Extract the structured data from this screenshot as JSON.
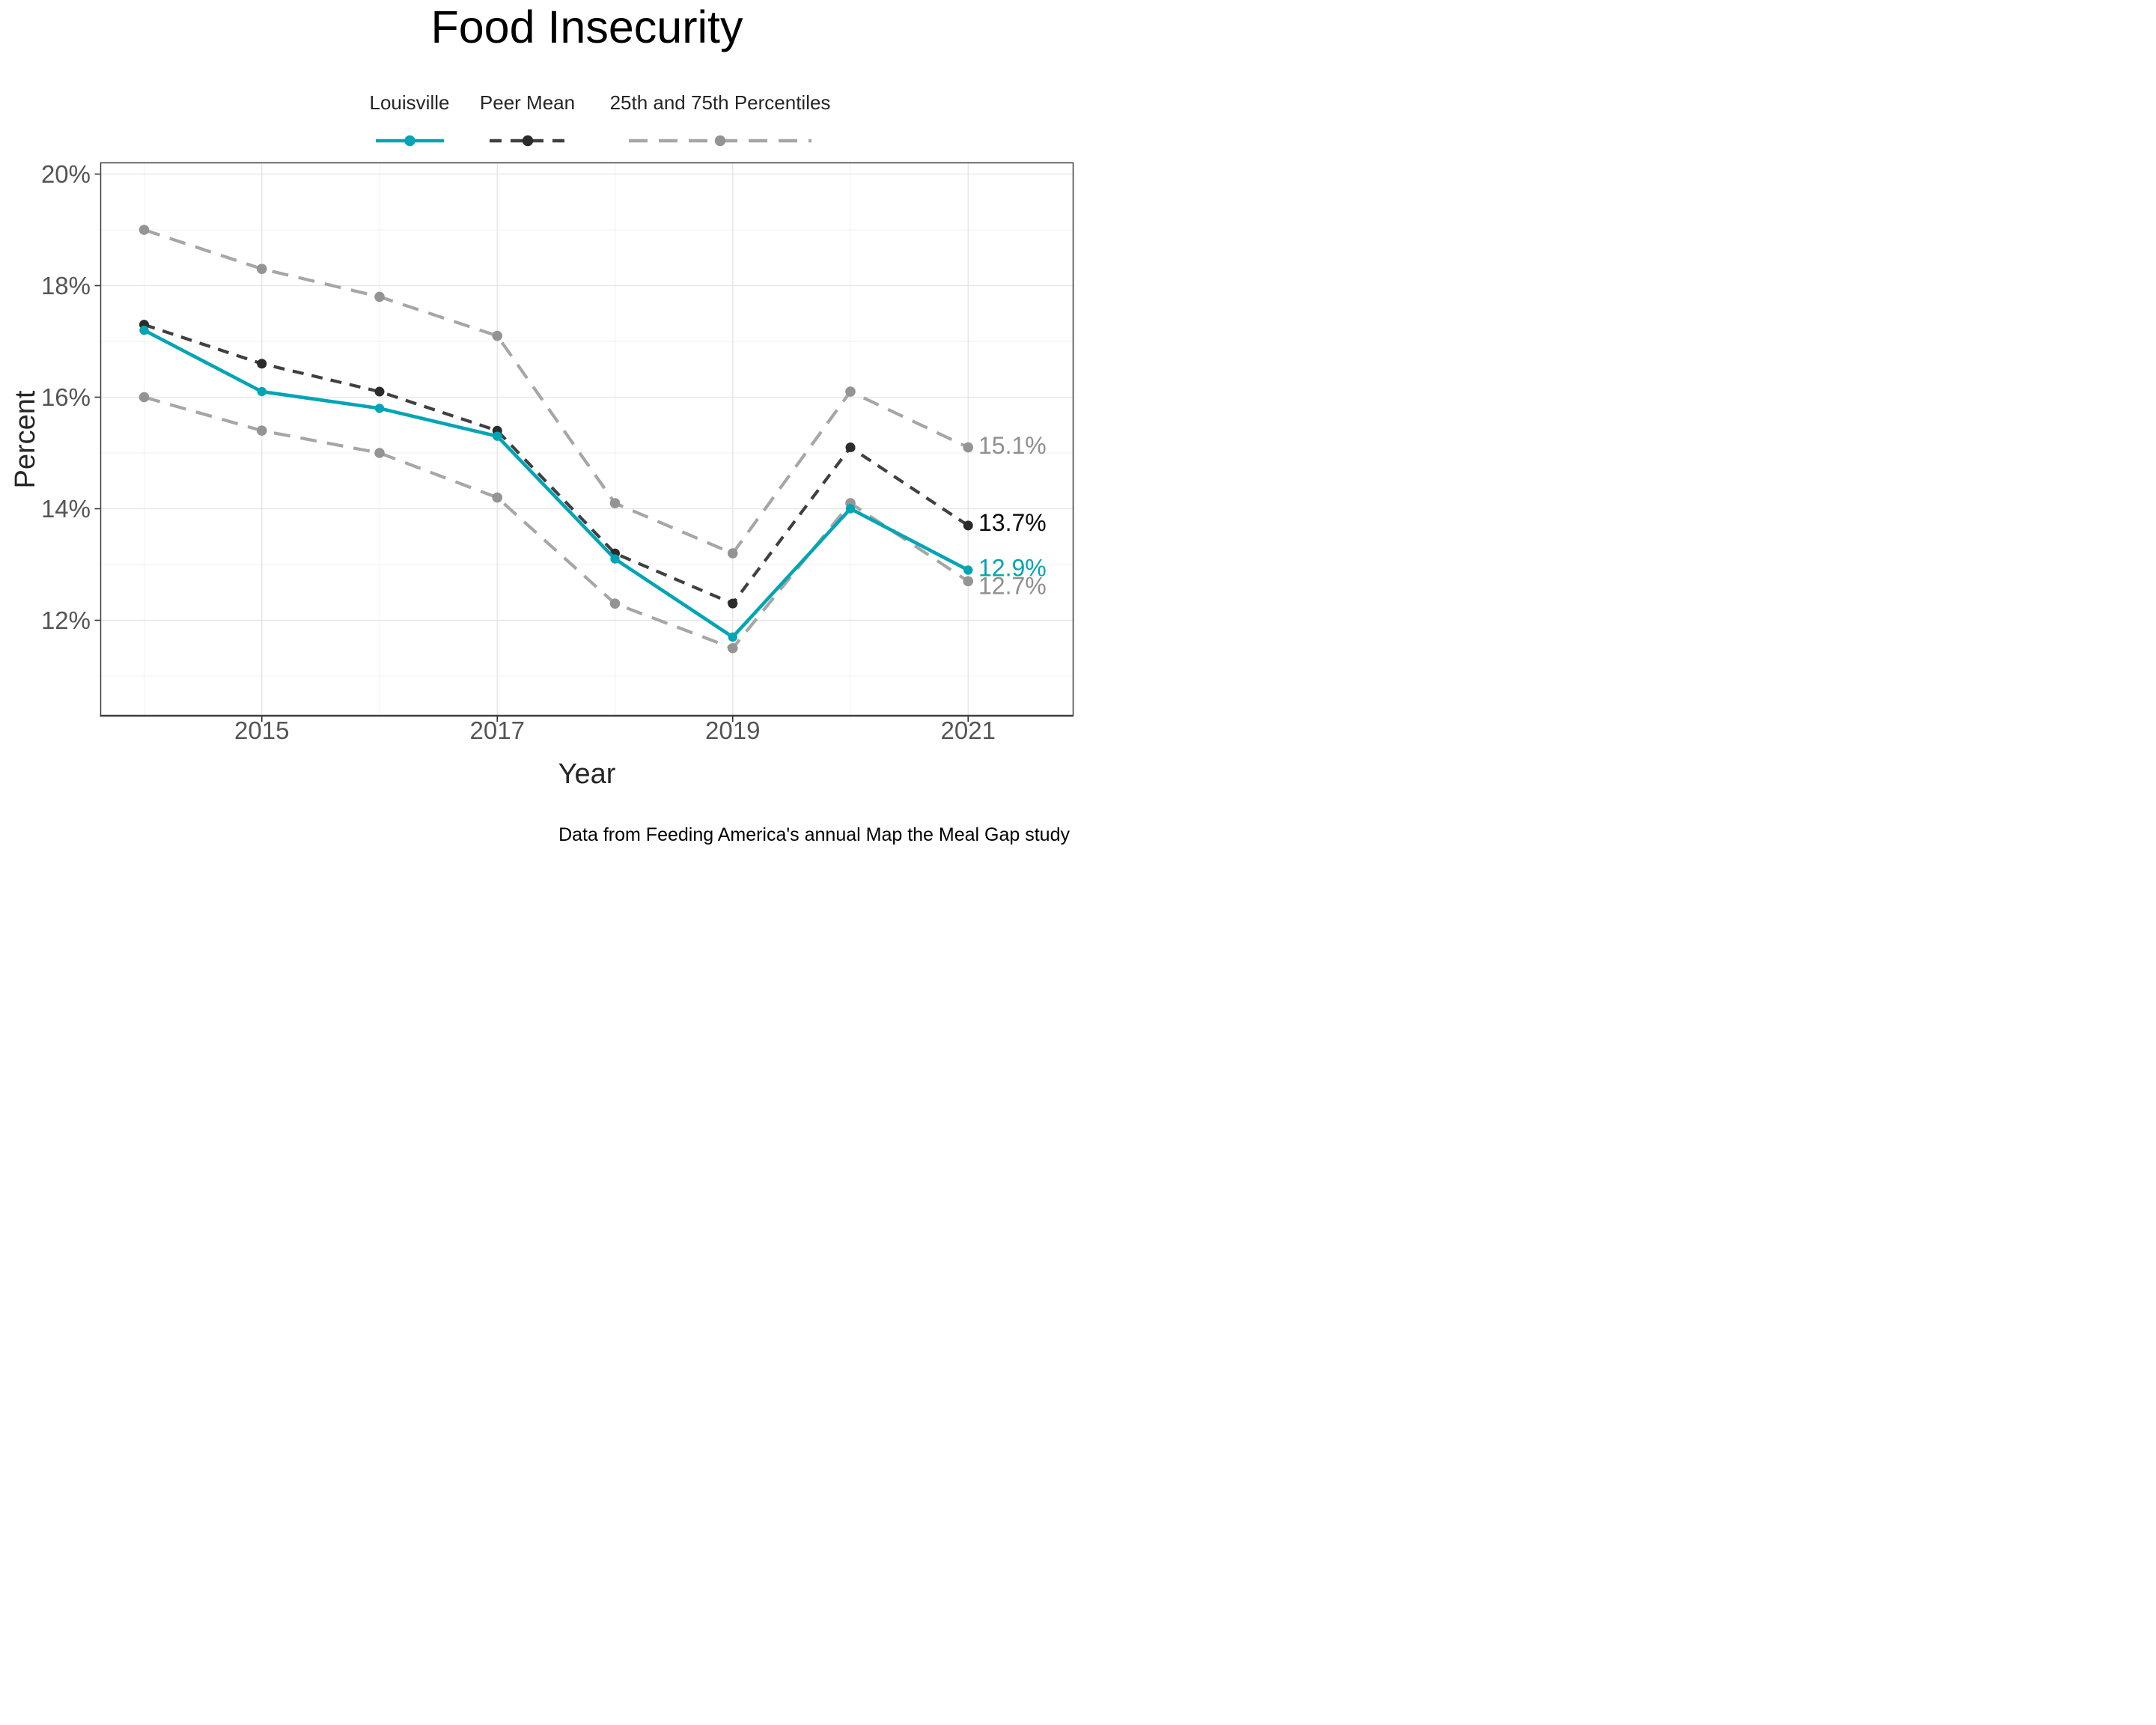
{
  "title": "Food Insecurity",
  "legend": {
    "items": [
      {
        "label": "Louisville"
      },
      {
        "label": "Peer Mean"
      },
      {
        "label": "25th and 75th Percentiles"
      }
    ]
  },
  "caption": "Data from Feeding America's annual Map the Meal Gap study",
  "colors": {
    "louisville": "#00a5b5",
    "peer_mean": "#404040",
    "peer_mean_point": "#2b2b2b",
    "percentiles": "#a6a6a6",
    "percentiles_point": "#949494",
    "grid_major": "#e4e4e4",
    "grid_minor": "#f0f0f0",
    "axis_text": "#555555",
    "axis_title": "#262626",
    "panel_border": "#3f3f3f"
  },
  "chart_data": {
    "type": "line",
    "title": "Food Insecurity",
    "xlabel": "Year",
    "ylabel": "Percent",
    "x": [
      2014,
      2015,
      2016,
      2017,
      2018,
      2019,
      2020,
      2021
    ],
    "x_tick_values": [
      2015,
      2017,
      2019,
      2021
    ],
    "x_tick_labels": [
      "2015",
      "2017",
      "2019",
      "2021"
    ],
    "y_tick_values": [
      20,
      18,
      16,
      14,
      12
    ],
    "y_tick_labels": [
      "20%",
      "18%",
      "16%",
      "14%",
      "12%"
    ],
    "xlim": [
      2013.63,
      2021.89
    ],
    "ylim": [
      10.3,
      20.2
    ],
    "grid": "major+minor",
    "legend_position": "top",
    "series": [
      {
        "name": "Louisville",
        "color": "#00a5b5",
        "line_style": "solid",
        "values": [
          17.2,
          16.1,
          15.8,
          15.3,
          13.1,
          11.7,
          14.0,
          12.9
        ]
      },
      {
        "name": "Peer Mean",
        "color": "#404040",
        "line_style": "dashed",
        "values": [
          17.3,
          16.6,
          16.1,
          15.4,
          13.2,
          12.3,
          15.1,
          13.7
        ]
      },
      {
        "name": "75th Percentile",
        "color": "#a6a6a6",
        "line_style": "dashed",
        "values": [
          19.0,
          18.3,
          17.8,
          17.1,
          14.1,
          13.2,
          16.1,
          15.1
        ]
      },
      {
        "name": "25th Percentile",
        "color": "#a6a6a6",
        "line_style": "dashed",
        "values": [
          16.0,
          15.4,
          15.0,
          14.2,
          12.3,
          11.5,
          14.1,
          12.7
        ]
      }
    ],
    "end_labels": [
      {
        "text": "15.1%",
        "series": "75th Percentile",
        "color": "#8f8f8f"
      },
      {
        "text": "13.7%",
        "series": "Peer Mean",
        "color": "#0a0a0a"
      },
      {
        "text": "12.9%",
        "series": "Louisville",
        "color": "#00a5b5"
      },
      {
        "text": "12.7%",
        "series": "25th Percentile",
        "color": "#8f8f8f"
      }
    ]
  }
}
